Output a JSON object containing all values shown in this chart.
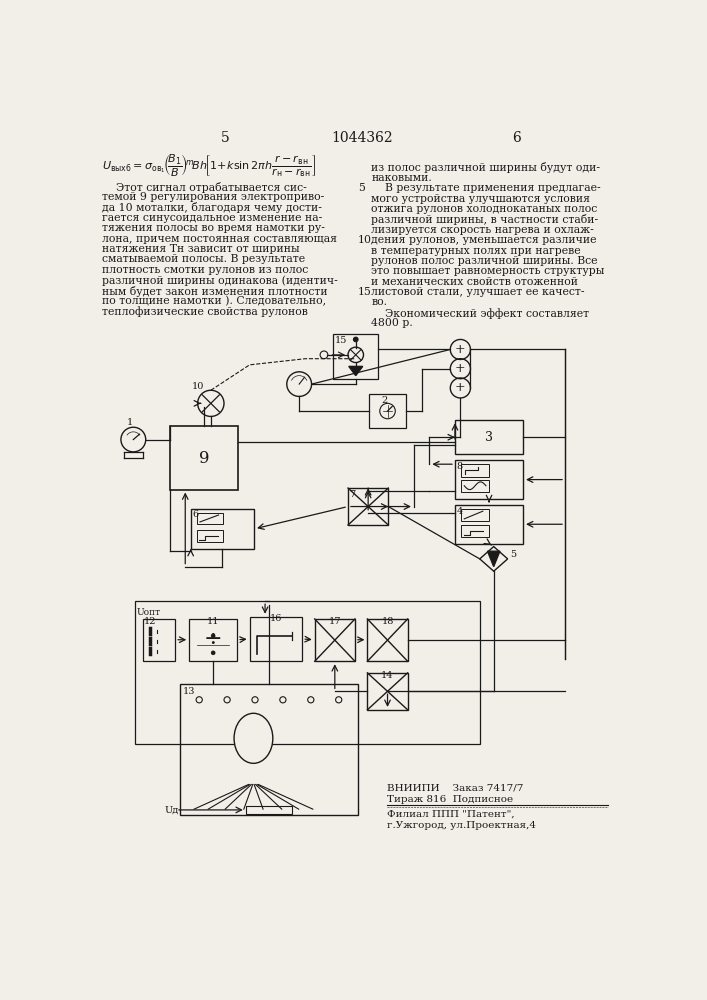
{
  "bg_color": "#f2efe9",
  "line_color": "#1a1a1a",
  "text_color": "#1a1a1a",
  "page_left": "5",
  "page_right": "6",
  "patent_number": "1044362",
  "left_text_lines": [
    "    Этот сигнал отрабатывается сис-",
    "темой 9 регулирования электроприво-",
    "да 10 моталки, благодаря чему дости-",
    "гается синусоидальное изменение на-",
    "тяжения полосы во время намотки ру-",
    "лона, причем постоянная составляющая",
    "натяжения Тн зависит от ширины",
    "сматываемой полосы. В результате",
    "плотность смотки рулонов из полос",
    "различной ширины одинакова (идентич-",
    "ным будет закон изменения плотности",
    "по толщине намотки ). Следовательно,",
    "теплофизические свойства рулонов"
  ],
  "right_text_lines": [
    "из полос различной ширины будут оди-",
    "наковыми.",
    "    В результате применения предлагае-",
    "мого устройства улучшаются условия",
    "отжига рулонов холоднокатаных полос",
    "различной ширины, в частности стаби-",
    "лизируется скорость нагрева и охлаж-",
    "дения рулонов, уменьшается различие",
    "в температурных полях при нагреве",
    "рулонов полос различной ширины. Все",
    "это повышает равномерность структуры",
    "и механических свойств отоженной",
    "листовой стали, улучшает ее качест-",
    "во.",
    "    Экономический эффект составляет",
    "4800 р."
  ],
  "line_numbers": [
    5,
    10,
    15
  ],
  "footer_line1": "ВНИИПИ    Заказ 7417/7",
  "footer_line2": "Тираж 816  Подписное",
  "footer_line3": "Филиал ППП \"Патент\",",
  "footer_line4": "г.Ужгород, ул.Проектная,4"
}
